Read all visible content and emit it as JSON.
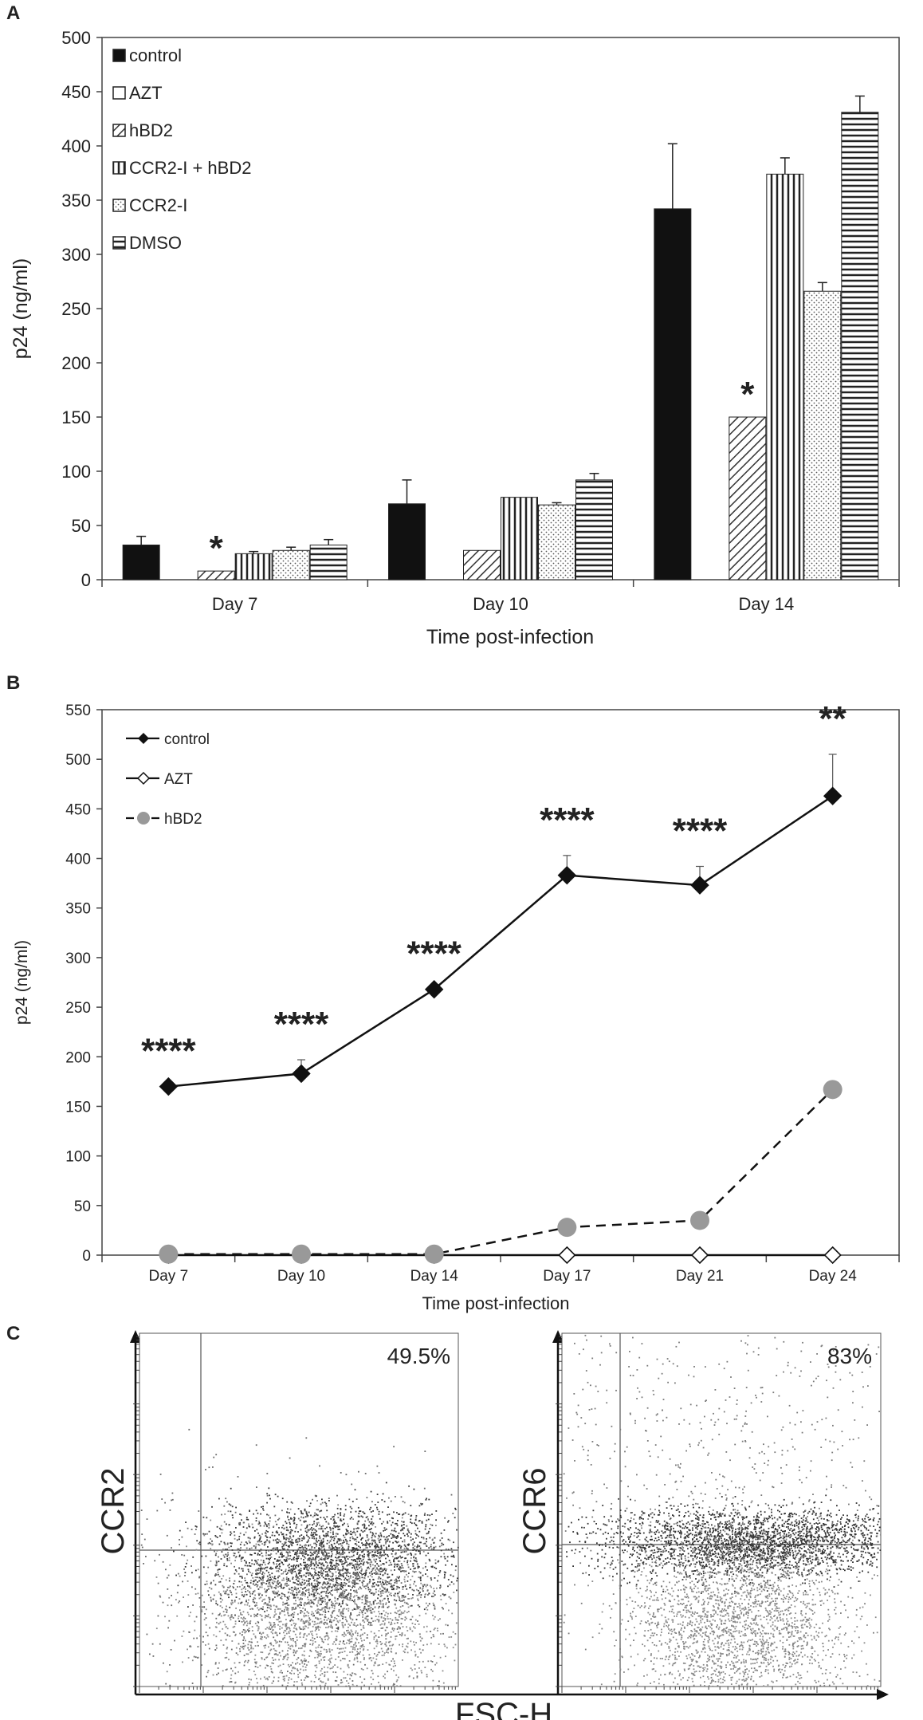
{
  "chart_data": [
    {
      "panel": "A",
      "type": "bar",
      "ylabel": "p24 (ng/ml)",
      "xlabel": "Time post-infection",
      "ylim": [
        0,
        500
      ],
      "yticks": [
        0,
        50,
        100,
        150,
        200,
        250,
        300,
        350,
        400,
        450,
        500
      ],
      "categories": [
        "Day 7",
        "Day 10",
        "Day 14"
      ],
      "series": [
        {
          "name": "control",
          "fill": "solid-black",
          "values": [
            32,
            70,
            342
          ],
          "errors": [
            8,
            22,
            60
          ]
        },
        {
          "name": "AZT",
          "fill": "white",
          "values": [
            0,
            0,
            0
          ],
          "errors": [
            0,
            0,
            0
          ]
        },
        {
          "name": "hBD2",
          "fill": "diagonal",
          "values": [
            8,
            27,
            150
          ],
          "errors": [
            0,
            0,
            0
          ]
        },
        {
          "name": "CCR2-I + hBD2",
          "fill": "vertical",
          "values": [
            24,
            76,
            374
          ],
          "errors": [
            2,
            0,
            15
          ]
        },
        {
          "name": "CCR2-I",
          "fill": "dots",
          "values": [
            27,
            69,
            266
          ],
          "errors": [
            3,
            2,
            8
          ]
        },
        {
          "name": "DMSO",
          "fill": "horizontal",
          "values": [
            32,
            92,
            431
          ],
          "errors": [
            5,
            6,
            15
          ]
        }
      ],
      "annotations": [
        {
          "text": "*",
          "category": "Day 7",
          "series": "hBD2"
        },
        {
          "text": "*",
          "category": "Day 14",
          "series": "hBD2"
        }
      ]
    },
    {
      "panel": "B",
      "type": "line",
      "ylabel": "p24 (ng/ml)",
      "xlabel": "Time post-infection",
      "ylim": [
        0,
        550
      ],
      "yticks": [
        0,
        50,
        100,
        150,
        200,
        250,
        300,
        350,
        400,
        450,
        500,
        550
      ],
      "categories": [
        "Day 7",
        "Day 10",
        "Day 14",
        "Day 17",
        "Day 21",
        "Day 24"
      ],
      "series": [
        {
          "name": "control",
          "marker": "filled-diamond",
          "line": "solid",
          "values": [
            170,
            183,
            268,
            383,
            373,
            463
          ],
          "errors": [
            0,
            14,
            0,
            20,
            19,
            42
          ]
        },
        {
          "name": "AZT",
          "marker": "open-diamond",
          "line": "solid",
          "values": [
            0,
            0,
            0,
            0,
            0,
            0
          ]
        },
        {
          "name": "hBD2",
          "marker": "gray-circle",
          "line": "dashed",
          "values": [
            1,
            1,
            1,
            28,
            35,
            167
          ]
        }
      ],
      "annotations": [
        "****",
        "****",
        "****",
        "****",
        "****",
        "**"
      ]
    },
    {
      "panel": "C",
      "type": "scatter",
      "plots": [
        {
          "ylabel": "CCR2",
          "xlabel": "FSC-H",
          "percent": "49.5%"
        },
        {
          "ylabel": "CCR6",
          "xlabel": "FSC-H",
          "percent": "83%"
        }
      ]
    }
  ],
  "colors": {
    "dark": "#111111",
    "axis": "#444444",
    "gray_marker": "#999999",
    "dot": "#555555"
  }
}
